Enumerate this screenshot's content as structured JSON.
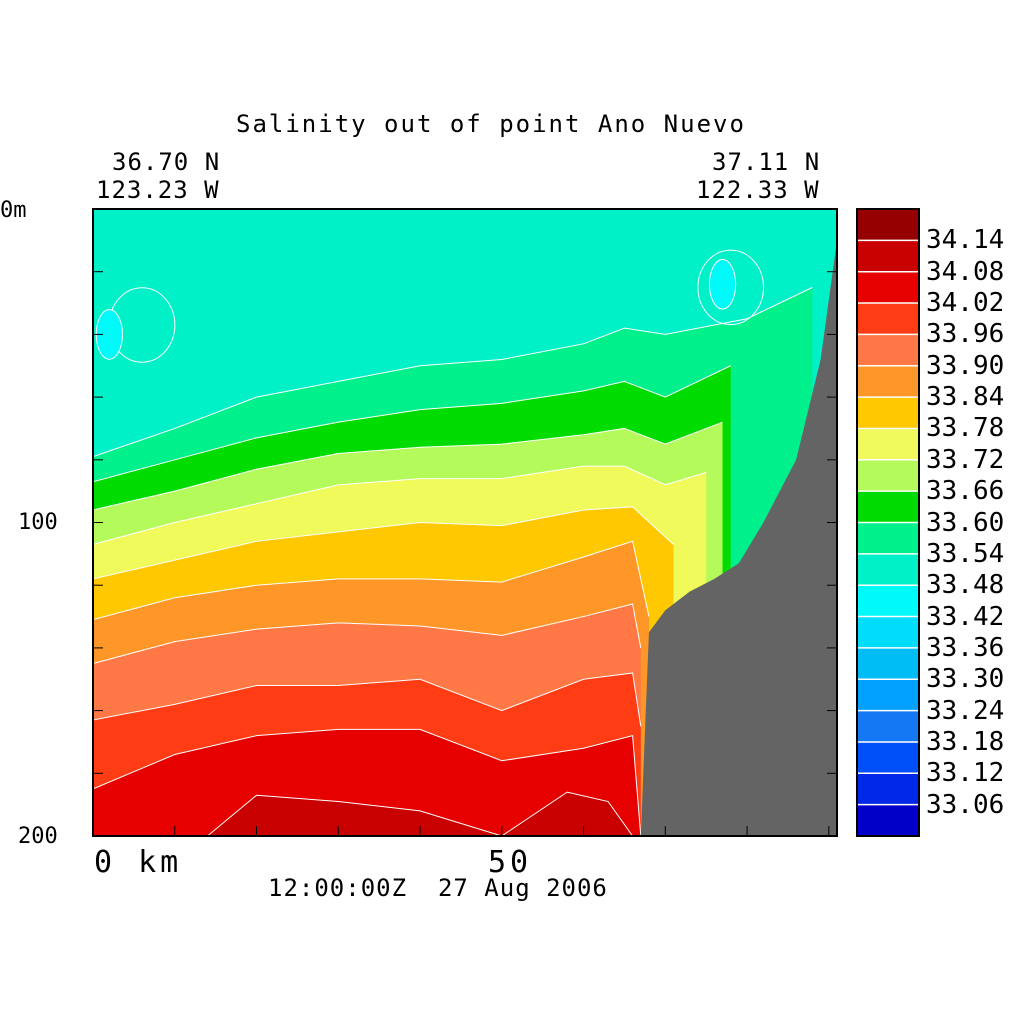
{
  "header": {
    "title": "Salinity out of point Ano Nuevo",
    "left_lat": "36.70 N",
    "left_lon": "123.23 W",
    "right_lat": "37.11 N",
    "right_lon": "122.33 W",
    "timestamp": "12:00:00Z  27 Aug 2006"
  },
  "chart_data": {
    "type": "contour",
    "title": "Salinity out of point Ano Nuevo",
    "xlabel": "km",
    "ylabel": "m",
    "xlim": [
      0,
      91
    ],
    "ylim": [
      200,
      0
    ],
    "x_tick_labels": [
      {
        "value": 0,
        "label": "0 km"
      },
      {
        "value": 50,
        "label": "50"
      }
    ],
    "y_tick_labels": [
      {
        "value": 0,
        "label": "0m"
      },
      {
        "value": 100,
        "label": "100"
      },
      {
        "value": 200,
        "label": "200"
      }
    ],
    "x_ticks": [
      0,
      10,
      20,
      30,
      40,
      50,
      60,
      70,
      80,
      90
    ],
    "y_ticks": [
      0,
      20,
      40,
      60,
      80,
      100,
      120,
      140,
      160,
      180,
      200
    ],
    "colorbar": {
      "levels": [
        "33.06",
        "33.12",
        "33.18",
        "33.24",
        "33.30",
        "33.36",
        "33.42",
        "33.48",
        "33.54",
        "33.60",
        "33.66",
        "33.72",
        "33.78",
        "33.84",
        "33.90",
        "33.96",
        "34.02",
        "34.08",
        "34.14"
      ],
      "colors": [
        "#0000c8",
        "#0028e6",
        "#0050fa",
        "#1478f5",
        "#00a0ff",
        "#00bef5",
        "#00dcfa",
        "#00fafa",
        "#00f0c8",
        "#00f08c",
        "#00dc00",
        "#b4fa5a",
        "#f0fa5a",
        "#ffc800",
        "#ff9628",
        "#ff7846",
        "#ff3c14",
        "#e60000",
        "#c80000",
        "#960000"
      ]
    },
    "bathymetry_color": "#646464",
    "salinity_isolines": [
      {
        "level": 33.54,
        "profile": [
          [
            0,
            79
          ],
          [
            10,
            70
          ],
          [
            20,
            60
          ],
          [
            30,
            55
          ],
          [
            40,
            50
          ],
          [
            50,
            48
          ],
          [
            60,
            43
          ],
          [
            65,
            38
          ],
          [
            70,
            40
          ],
          [
            80,
            35
          ],
          [
            88,
            25
          ]
        ]
      },
      {
        "level": 33.6,
        "profile": [
          [
            0,
            87
          ],
          [
            10,
            80
          ],
          [
            20,
            73
          ],
          [
            30,
            68
          ],
          [
            40,
            64
          ],
          [
            50,
            62
          ],
          [
            60,
            58
          ],
          [
            65,
            55
          ],
          [
            70,
            60
          ],
          [
            78,
            50
          ]
        ]
      },
      {
        "level": 33.66,
        "profile": [
          [
            0,
            96
          ],
          [
            10,
            90
          ],
          [
            20,
            83
          ],
          [
            30,
            78
          ],
          [
            40,
            76
          ],
          [
            50,
            75
          ],
          [
            60,
            72
          ],
          [
            65,
            70
          ],
          [
            70,
            75
          ],
          [
            77,
            68
          ]
        ]
      },
      {
        "level": 33.72,
        "profile": [
          [
            0,
            107
          ],
          [
            10,
            100
          ],
          [
            20,
            94
          ],
          [
            30,
            88
          ],
          [
            40,
            86
          ],
          [
            50,
            86
          ],
          [
            60,
            82
          ],
          [
            65,
            82
          ],
          [
            70,
            88
          ],
          [
            75,
            84
          ]
        ]
      },
      {
        "level": 33.78,
        "profile": [
          [
            0,
            118
          ],
          [
            10,
            112
          ],
          [
            20,
            106
          ],
          [
            30,
            103
          ],
          [
            40,
            100
          ],
          [
            50,
            101
          ],
          [
            60,
            96
          ],
          [
            66,
            95
          ],
          [
            71,
            107
          ]
        ]
      },
      {
        "level": 33.84,
        "profile": [
          [
            0,
            131
          ],
          [
            10,
            124
          ],
          [
            20,
            120
          ],
          [
            30,
            118
          ],
          [
            40,
            118
          ],
          [
            50,
            119
          ],
          [
            60,
            111
          ],
          [
            66,
            106
          ],
          [
            68,
            130
          ]
        ]
      },
      {
        "level": 33.9,
        "profile": [
          [
            0,
            145
          ],
          [
            10,
            138
          ],
          [
            20,
            134
          ],
          [
            30,
            132
          ],
          [
            40,
            133
          ],
          [
            50,
            136
          ],
          [
            60,
            130
          ],
          [
            66,
            126
          ],
          [
            67,
            140
          ]
        ]
      },
      {
        "level": 33.96,
        "profile": [
          [
            0,
            163
          ],
          [
            10,
            158
          ],
          [
            20,
            152
          ],
          [
            30,
            152
          ],
          [
            40,
            150
          ],
          [
            50,
            160
          ],
          [
            60,
            150
          ],
          [
            66,
            148
          ],
          [
            67,
            165
          ]
        ]
      },
      {
        "level": 34.02,
        "profile": [
          [
            0,
            185
          ],
          [
            10,
            174
          ],
          [
            20,
            168
          ],
          [
            30,
            166
          ],
          [
            40,
            166
          ],
          [
            50,
            176
          ],
          [
            60,
            172
          ],
          [
            66,
            168
          ],
          [
            67,
            200
          ]
        ]
      },
      {
        "level": 34.08,
        "profile": [
          [
            14,
            200
          ],
          [
            20,
            187
          ],
          [
            30,
            189
          ],
          [
            40,
            192
          ],
          [
            50,
            200
          ],
          [
            58,
            186
          ],
          [
            63,
            189
          ],
          [
            66,
            200
          ]
        ]
      }
    ],
    "fresh_core_lenses": [
      {
        "level": 33.48,
        "center": [
          6,
          37
        ],
        "region": "west"
      },
      {
        "level": 33.42,
        "center": [
          2,
          40
        ],
        "region": "west"
      },
      {
        "level": 33.48,
        "center": [
          78,
          25
        ],
        "region": "east"
      },
      {
        "level": 33.42,
        "center": [
          77,
          24
        ],
        "region": "east"
      }
    ],
    "bathymetry_profile": [
      [
        67,
        200
      ],
      [
        68,
        135
      ],
      [
        70,
        128
      ],
      [
        73,
        122
      ],
      [
        76,
        118
      ],
      [
        79,
        113
      ],
      [
        82,
        100
      ],
      [
        86,
        80
      ],
      [
        89,
        48
      ],
      [
        91,
        10
      ]
    ]
  }
}
